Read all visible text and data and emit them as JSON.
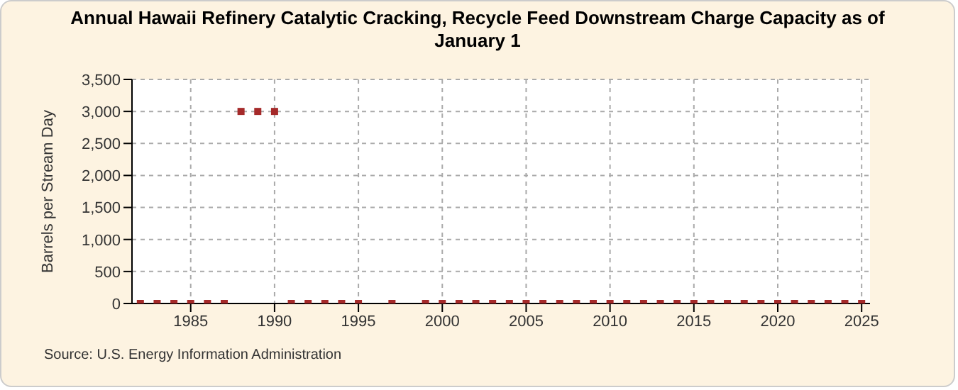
{
  "chart_data": {
    "type": "scatter",
    "title": "Annual Hawaii Refinery Catalytic Cracking, Recycle Feed Downstream Charge Capacity as of January 1",
    "ylabel": "Barrels per Stream Day",
    "annotations": [
      "Source: U.S. Energy Information Administration"
    ],
    "x": [
      1982,
      1983,
      1984,
      1985,
      1986,
      1987,
      1988,
      1989,
      1990,
      1991,
      1992,
      1993,
      1994,
      1995,
      1996,
      1997,
      1998,
      1999,
      2000,
      2001,
      2002,
      2003,
      2004,
      2005,
      2006,
      2007,
      2008,
      2009,
      2010,
      2011,
      2012,
      2013,
      2014,
      2015,
      2016,
      2017,
      2018,
      2019,
      2020,
      2021,
      2022,
      2023,
      2024,
      2025
    ],
    "series": [
      {
        "color": "#a52a2a",
        "values": [
          0,
          0,
          0,
          0,
          0,
          0,
          3000,
          3000,
          3000,
          0,
          0,
          0,
          0,
          0,
          null,
          0,
          null,
          0,
          0,
          0,
          0,
          0,
          0,
          0,
          0,
          0,
          0,
          0,
          0,
          0,
          0,
          0,
          0,
          0,
          0,
          0,
          0,
          0,
          0,
          0,
          0,
          0,
          0,
          0
        ]
      }
    ],
    "xlim": [
      1981.5,
      2025.5
    ],
    "xticks": [
      1985,
      1990,
      1995,
      2000,
      2005,
      2010,
      2015,
      2020,
      2025
    ],
    "ylim": [
      0,
      3500
    ],
    "yticks": [
      {
        "value": 0,
        "label": "0"
      },
      {
        "value": 500,
        "label": "500"
      },
      {
        "value": 1000,
        "label": "1,000"
      },
      {
        "value": 1500,
        "label": "1,500"
      },
      {
        "value": 2000,
        "label": "2,000"
      },
      {
        "value": 2500,
        "label": "2,500"
      },
      {
        "value": 3000,
        "label": "3,000"
      },
      {
        "value": 3500,
        "label": "3,500"
      }
    ],
    "grid": true,
    "marker": "square"
  }
}
